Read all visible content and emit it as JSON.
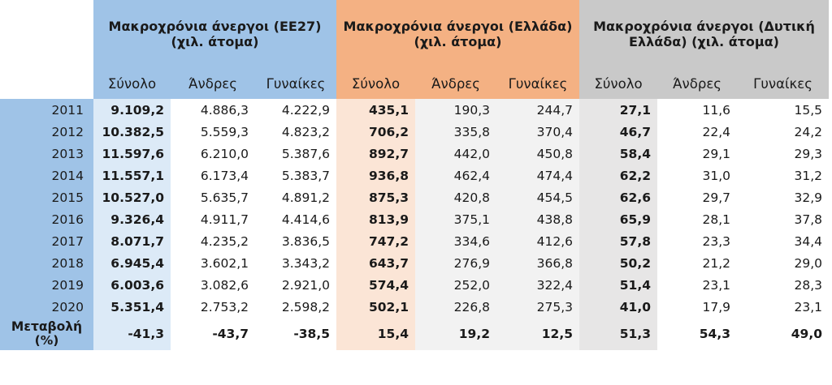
{
  "headers": {
    "group1": "Μακροχρόνια άνεργοι (ΕΕ27) (χιλ. άτομα)",
    "group2": "Μακροχρόνια άνεργοι (Ελλάδα) (χιλ. άτομα)",
    "group3": "Μακροχρόνια άνεργοι (Δυτική Ελλάδα) (χιλ. άτομα)",
    "total": "Σύνολο",
    "men": "Άνδρες",
    "women": "Γυναίκες"
  },
  "rows": [
    {
      "year": "2011",
      "v": [
        "9.109,2",
        "4.886,3",
        "4.222,9",
        "435,1",
        "190,3",
        "244,7",
        "27,1",
        "11,6",
        "15,5"
      ]
    },
    {
      "year": "2012",
      "v": [
        "10.382,5",
        "5.559,3",
        "4.823,2",
        "706,2",
        "335,8",
        "370,4",
        "46,7",
        "22,4",
        "24,2"
      ]
    },
    {
      "year": "2013",
      "v": [
        "11.597,6",
        "6.210,0",
        "5.387,6",
        "892,7",
        "442,0",
        "450,8",
        "58,4",
        "29,1",
        "29,3"
      ]
    },
    {
      "year": "2014",
      "v": [
        "11.557,1",
        "6.173,4",
        "5.383,7",
        "936,8",
        "462,4",
        "474,4",
        "62,2",
        "31,0",
        "31,2"
      ]
    },
    {
      "year": "2015",
      "v": [
        "10.527,0",
        "5.635,7",
        "4.891,2",
        "875,3",
        "420,8",
        "454,5",
        "62,6",
        "29,7",
        "32,9"
      ]
    },
    {
      "year": "2016",
      "v": [
        "9.326,4",
        "4.911,7",
        "4.414,6",
        "813,9",
        "375,1",
        "438,8",
        "65,9",
        "28,1",
        "37,8"
      ]
    },
    {
      "year": "2017",
      "v": [
        "8.071,7",
        "4.235,2",
        "3.836,5",
        "747,2",
        "334,6",
        "412,6",
        "57,8",
        "23,3",
        "34,4"
      ]
    },
    {
      "year": "2018",
      "v": [
        "6.945,4",
        "3.602,1",
        "3.343,2",
        "643,7",
        "276,9",
        "366,8",
        "50,2",
        "21,2",
        "29,0"
      ]
    },
    {
      "year": "2019",
      "v": [
        "6.003,6",
        "3.082,6",
        "2.921,0",
        "574,4",
        "252,0",
        "322,4",
        "51,4",
        "23,1",
        "28,3"
      ]
    },
    {
      "year": "2020",
      "v": [
        "5.351,4",
        "2.753,2",
        "2.598,2",
        "502,1",
        "226,8",
        "275,3",
        "41,0",
        "17,9",
        "23,1"
      ]
    }
  ],
  "change": {
    "label": "Μεταβολή (%)",
    "v": [
      "-41,3",
      "-43,7",
      "-38,5",
      "15,4",
      "19,2",
      "12,5",
      "51,3",
      "54,3",
      "49,0"
    ]
  }
}
